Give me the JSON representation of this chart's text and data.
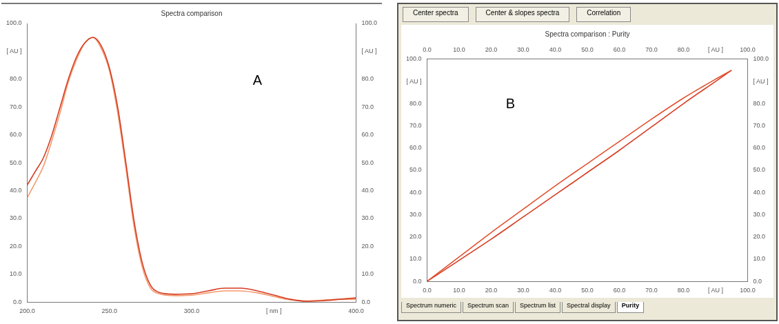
{
  "chart_data": [
    {
      "type": "line",
      "title": "Spectra comparison",
      "annotations": [
        "A"
      ],
      "x": [
        200,
        205,
        210,
        215,
        220,
        225,
        230,
        235,
        240,
        245,
        250,
        255,
        260,
        265,
        270,
        275,
        280,
        290,
        300,
        310,
        320,
        330,
        340,
        350,
        360,
        370,
        380,
        390,
        400
      ],
      "series": [
        {
          "color": "#d63b20",
          "values": [
            42,
            47,
            52,
            60,
            70,
            80,
            88,
            93,
            95,
            92,
            84,
            70,
            50,
            29,
            14,
            6,
            3.5,
            2.8,
            3,
            4,
            5,
            5,
            4,
            2.5,
            1,
            0.3,
            0.5,
            1,
            1.5
          ]
        },
        {
          "color": "#f39a6e",
          "values": [
            37.5,
            43,
            49,
            58,
            68,
            79,
            87,
            93,
            95,
            91,
            83,
            68,
            48,
            27,
            12.5,
            5,
            3,
            2.3,
            2.5,
            3.3,
            4,
            4,
            3.3,
            2,
            0.8,
            0.4,
            0.7,
            1,
            1
          ]
        }
      ],
      "xlim": [
        200,
        400
      ],
      "xticks": [
        {
          "value": 200,
          "label": "200.0"
        },
        {
          "value": 250,
          "label": "250.0"
        },
        {
          "value": 300,
          "label": "300.0"
        },
        {
          "value": 350,
          "label": "[ nm ]"
        },
        {
          "value": 400,
          "label": "400.0"
        }
      ],
      "ylim": [
        0,
        100
      ],
      "yticks": [
        {
          "value": 0,
          "label": "0.0"
        },
        {
          "value": 10,
          "label": "10.0"
        },
        {
          "value": 20,
          "label": "20.0"
        },
        {
          "value": 30,
          "label": "30.0"
        },
        {
          "value": 40,
          "label": "40.0"
        },
        {
          "value": 50,
          "label": "50.0"
        },
        {
          "value": 60,
          "label": "60.0"
        },
        {
          "value": 70,
          "label": "70.0"
        },
        {
          "value": 80,
          "label": "80.0"
        },
        {
          "value": 90,
          "label": "[ AU ]"
        },
        {
          "value": 100,
          "label": "100.0"
        }
      ],
      "y2lim": [
        0,
        100
      ],
      "y2ticks": [
        {
          "value": 0,
          "label": "0.0"
        },
        {
          "value": 10,
          "label": "10.0"
        },
        {
          "value": 20,
          "label": "20.0"
        },
        {
          "value": 30,
          "label": "30.0"
        },
        {
          "value": 40,
          "label": "40.0"
        },
        {
          "value": 50,
          "label": "50.0"
        },
        {
          "value": 60,
          "label": "60.0"
        },
        {
          "value": 70,
          "label": "70.0"
        },
        {
          "value": 80,
          "label": "80.0"
        },
        {
          "value": 90,
          "label": "[ AU ]"
        },
        {
          "value": 100,
          "label": "100.0"
        }
      ],
      "legend": false,
      "grid": false
    },
    {
      "type": "line",
      "title": "Spectra comparison : Purity",
      "annotations": [
        "B",
        "Center spectra",
        "Center & slopes spectra",
        "Correlation",
        "Spectrum numeric",
        "Spectrum scan",
        "Spectrum list",
        "Spectral display",
        "Purity"
      ],
      "series": [
        {
          "color": "#e2502e",
          "x": [
            0,
            10,
            20,
            30,
            40,
            50,
            60,
            70,
            80,
            90,
            95
          ],
          "values": [
            0,
            11,
            22,
            32.5,
            43,
            53,
            63,
            73,
            82.5,
            91,
            95
          ]
        },
        {
          "color": "#d63b20",
          "x": [
            0,
            10,
            20,
            30,
            40,
            50,
            60,
            70,
            80,
            90,
            95
          ],
          "values": [
            0,
            9.5,
            19,
            29,
            39,
            49,
            59,
            69.5,
            80,
            90,
            95
          ]
        }
      ],
      "xlim": [
        0,
        100
      ],
      "xticks": [
        {
          "value": 0,
          "label": "0.0"
        },
        {
          "value": 10,
          "label": "10.0"
        },
        {
          "value": 20,
          "label": "20.0"
        },
        {
          "value": 30,
          "label": "30.0"
        },
        {
          "value": 40,
          "label": "40.0"
        },
        {
          "value": 50,
          "label": "50.0"
        },
        {
          "value": 60,
          "label": "60.0"
        },
        {
          "value": 70,
          "label": "70.0"
        },
        {
          "value": 80,
          "label": "80.0"
        },
        {
          "value": 90,
          "label": "[ AU ]"
        },
        {
          "value": 100,
          "label": "100.0"
        }
      ],
      "x2lim": [
        0,
        100
      ],
      "x2ticks": [
        {
          "value": 0,
          "label": "0.0"
        },
        {
          "value": 10,
          "label": "10.0"
        },
        {
          "value": 20,
          "label": "20.0"
        },
        {
          "value": 30,
          "label": "30.0"
        },
        {
          "value": 40,
          "label": "40.0"
        },
        {
          "value": 50,
          "label": "50.0"
        },
        {
          "value": 60,
          "label": "60.0"
        },
        {
          "value": 70,
          "label": "70.0"
        },
        {
          "value": 80,
          "label": "80.0"
        },
        {
          "value": 90,
          "label": "[ AU ]"
        },
        {
          "value": 100,
          "label": "100.0"
        }
      ],
      "ylim": [
        0,
        100
      ],
      "yticks": [
        {
          "value": 0,
          "label": "0.0"
        },
        {
          "value": 10,
          "label": "10.0"
        },
        {
          "value": 20,
          "label": "20.0"
        },
        {
          "value": 30,
          "label": "30.0"
        },
        {
          "value": 40,
          "label": "40.0"
        },
        {
          "value": 50,
          "label": "50.0"
        },
        {
          "value": 60,
          "label": "60.0"
        },
        {
          "value": 70,
          "label": "70.0"
        },
        {
          "value": 80,
          "label": "80.0"
        },
        {
          "value": 90,
          "label": "[ AU ]"
        },
        {
          "value": 100,
          "label": "100.0"
        }
      ],
      "y2lim": [
        0,
        100
      ],
      "y2ticks": [
        {
          "value": 0,
          "label": "0.0"
        },
        {
          "value": 10,
          "label": "10.0"
        },
        {
          "value": 20,
          "label": "20.0"
        },
        {
          "value": 30,
          "label": "30.0"
        },
        {
          "value": 40,
          "label": "40.0"
        },
        {
          "value": 50,
          "label": "50.0"
        },
        {
          "value": 60,
          "label": "60.0"
        },
        {
          "value": 70,
          "label": "70.0"
        },
        {
          "value": 80,
          "label": "80.0"
        },
        {
          "value": 90,
          "label": "[ AU ]"
        },
        {
          "value": 100,
          "label": "100.0"
        }
      ],
      "legend": false,
      "grid": false
    }
  ]
}
